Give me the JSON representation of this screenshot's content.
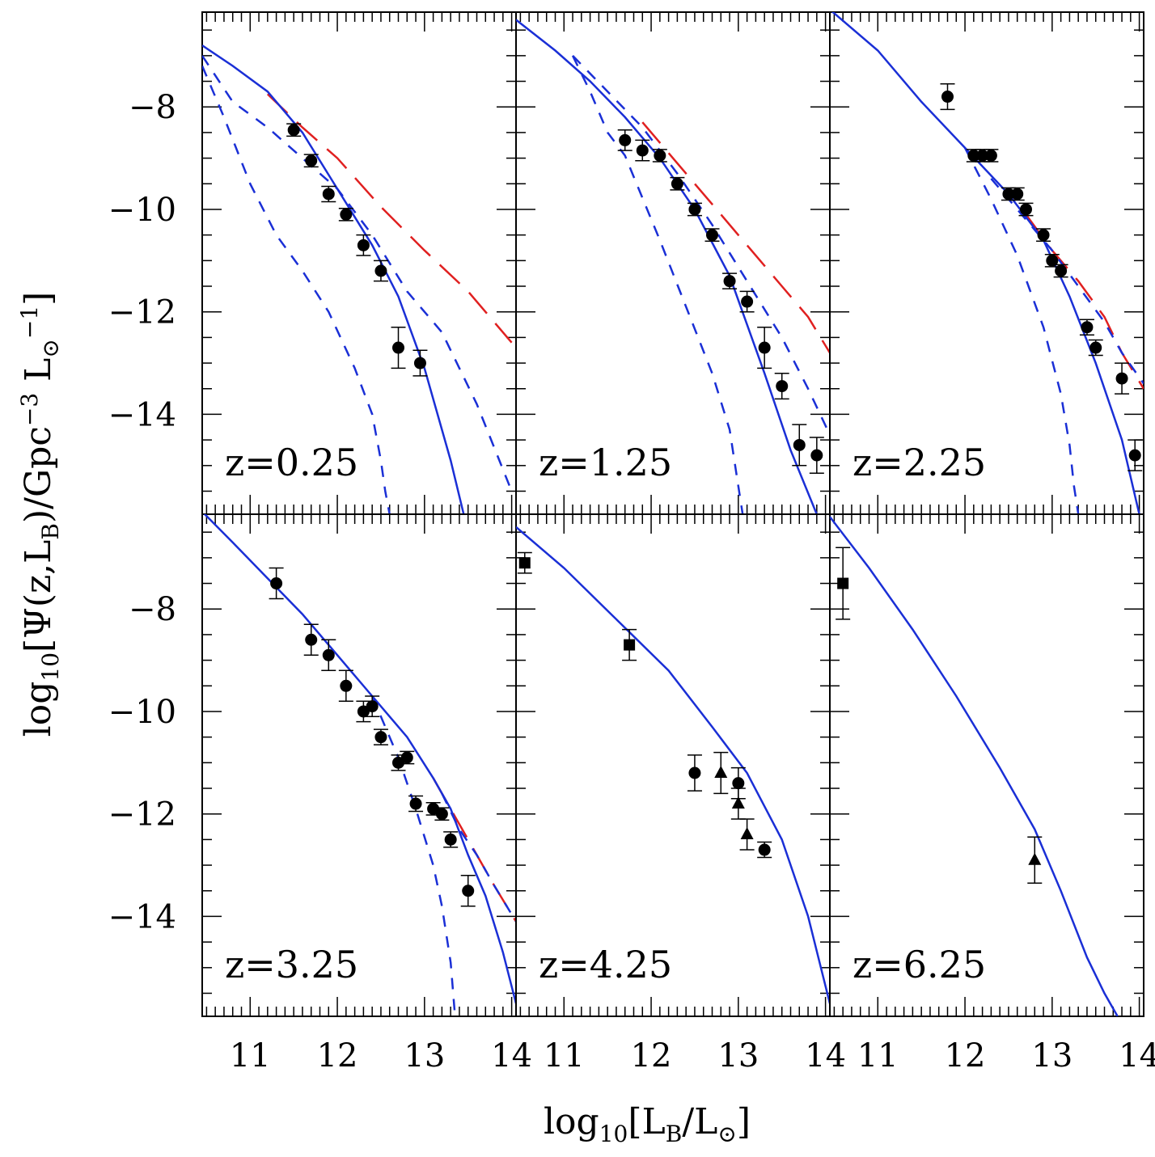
{
  "chart_data": {
    "type": "scatter",
    "xlabel": "log10[LB/L⊙]",
    "ylabel": "log10[Ψ(z,LB)/Gpc−3 L⊙−1]",
    "xlim": [
      10.45,
      14.05
    ],
    "ylim": [
      -15.95,
      -6.15
    ],
    "x_ticks": [
      11,
      12,
      13,
      14
    ],
    "y_ticks": [
      -8,
      -10,
      -12,
      -14
    ],
    "grid": false,
    "colors": {
      "model_total": "#1a2fd6",
      "model_components": "#1a2fd6",
      "model_alt": "#e02020",
      "data": "#000000"
    },
    "panels": [
      {
        "label": "z=0.25",
        "data_circles": [
          {
            "x": 11.5,
            "y": -8.45,
            "err": 0.12
          },
          {
            "x": 11.7,
            "y": -9.05,
            "err": 0.12
          },
          {
            "x": 11.9,
            "y": -9.7,
            "err": 0.15
          },
          {
            "x": 12.1,
            "y": -10.1,
            "err": 0.12
          },
          {
            "x": 12.3,
            "y": -10.7,
            "err": 0.2
          },
          {
            "x": 12.5,
            "y": -11.2,
            "err": 0.2
          },
          {
            "x": 12.7,
            "y": -12.7,
            "err": 0.4
          },
          {
            "x": 12.95,
            "y": -13.0,
            "err": 0.25
          }
        ],
        "model_total": {
          "x": [
            10.45,
            10.8,
            11.2,
            11.6,
            12.0,
            12.4,
            12.7,
            13.0,
            13.3,
            13.45
          ],
          "y": [
            -6.8,
            -7.2,
            -7.7,
            -8.5,
            -9.6,
            -10.7,
            -11.7,
            -13.1,
            -14.9,
            -15.95
          ]
        },
        "model_comp1": {
          "x": [
            10.45,
            10.7,
            11.0,
            11.3,
            11.6,
            11.9,
            12.2,
            12.4,
            12.5,
            12.55,
            12.6
          ],
          "y": [
            -7.2,
            -8.2,
            -9.5,
            -10.5,
            -11.2,
            -12.0,
            -13.1,
            -14.0,
            -14.9,
            -15.5,
            -15.95
          ]
        },
        "model_comp2": {
          "x": [
            10.45,
            10.8,
            11.2,
            11.6,
            12.0,
            12.4,
            12.8,
            13.2,
            13.6,
            14.0
          ],
          "y": [
            -7.0,
            -7.9,
            -8.4,
            -9.0,
            -9.6,
            -10.5,
            -11.6,
            -12.4,
            -13.8,
            -15.5
          ]
        },
        "model_alt": {
          "x": [
            11.2,
            11.6,
            12.0,
            12.5,
            13.0,
            13.5,
            14.0
          ],
          "y": [
            -7.75,
            -8.4,
            -9.0,
            -9.95,
            -10.8,
            -11.6,
            -12.6
          ]
        }
      },
      {
        "label": "z=1.25",
        "data_circles": [
          {
            "x": 11.7,
            "y": -8.65,
            "err": 0.2
          },
          {
            "x": 11.9,
            "y": -8.85,
            "err": 0.2
          },
          {
            "x": 12.1,
            "y": -8.95,
            "err": 0.12
          },
          {
            "x": 12.3,
            "y": -9.5,
            "err": 0.12
          },
          {
            "x": 12.5,
            "y": -10.0,
            "err": 0.12
          },
          {
            "x": 12.7,
            "y": -10.5,
            "err": 0.12
          },
          {
            "x": 12.9,
            "y": -11.4,
            "err": 0.15
          },
          {
            "x": 13.1,
            "y": -11.8,
            "err": 0.2
          },
          {
            "x": 13.3,
            "y": -12.7,
            "err": 0.4
          },
          {
            "x": 13.5,
            "y": -13.45,
            "err": 0.25
          },
          {
            "x": 13.7,
            "y": -14.6,
            "err": 0.4
          },
          {
            "x": 13.9,
            "y": -14.8,
            "err": 0.35
          }
        ],
        "model_total": {
          "x": [
            10.45,
            10.9,
            11.3,
            11.7,
            12.1,
            12.5,
            12.9,
            13.3,
            13.6,
            13.9
          ],
          "y": [
            -6.3,
            -6.9,
            -7.5,
            -8.2,
            -9.0,
            -10.0,
            -11.3,
            -13.2,
            -14.7,
            -15.95
          ]
        },
        "model_comp1": {
          "x": [
            11.1,
            11.3,
            11.5,
            11.7,
            12.1,
            12.4,
            12.7,
            12.9,
            13.0,
            13.05
          ],
          "y": [
            -7.0,
            -7.7,
            -8.5,
            -8.95,
            -10.6,
            -11.9,
            -13.2,
            -14.3,
            -15.4,
            -15.95
          ]
        },
        "model_comp2": {
          "x": [
            11.1,
            11.5,
            11.9,
            12.3,
            12.7,
            13.1,
            13.5,
            13.8,
            14.05
          ],
          "y": [
            -7.0,
            -7.7,
            -8.4,
            -9.3,
            -10.3,
            -11.4,
            -12.5,
            -13.5,
            -14.4
          ]
        },
        "model_alt": {
          "x": [
            11.9,
            12.3,
            12.7,
            13.1,
            13.5,
            13.8,
            14.05
          ],
          "y": [
            -8.3,
            -9.1,
            -9.9,
            -10.7,
            -11.5,
            -12.1,
            -12.8
          ]
        }
      },
      {
        "label": "z=2.25",
        "data_circles": [
          {
            "x": 11.8,
            "y": -7.8,
            "err": 0.25
          },
          {
            "x": 12.1,
            "y": -8.95,
            "err": 0.12
          },
          {
            "x": 12.2,
            "y": -8.95,
            "err": 0.12
          },
          {
            "x": 12.3,
            "y": -8.95,
            "err": 0.12
          },
          {
            "x": 12.5,
            "y": -9.7,
            "err": 0.12
          },
          {
            "x": 12.6,
            "y": -9.7,
            "err": 0.12
          },
          {
            "x": 12.7,
            "y": -10.0,
            "err": 0.12
          },
          {
            "x": 12.9,
            "y": -10.5,
            "err": 0.12
          },
          {
            "x": 13.0,
            "y": -11.0,
            "err": 0.12
          },
          {
            "x": 13.1,
            "y": -11.2,
            "err": 0.12
          },
          {
            "x": 13.4,
            "y": -12.3,
            "err": 0.15
          },
          {
            "x": 13.5,
            "y": -12.7,
            "err": 0.15
          },
          {
            "x": 13.8,
            "y": -13.3,
            "err": 0.3
          },
          {
            "x": 13.95,
            "y": -14.8,
            "err": 0.3
          }
        ],
        "model_total": {
          "x": [
            10.45,
            11.0,
            11.5,
            12.0,
            12.5,
            12.9,
            13.2,
            13.5,
            13.8,
            14.0
          ],
          "y": [
            -6.1,
            -6.9,
            -7.9,
            -8.8,
            -9.7,
            -10.6,
            -11.7,
            -13.0,
            -14.5,
            -15.95
          ]
        },
        "model_comp1": {
          "x": [
            12.0,
            12.3,
            12.6,
            12.9,
            13.1,
            13.2,
            13.25,
            13.3
          ],
          "y": [
            -8.8,
            -9.8,
            -10.9,
            -12.3,
            -13.6,
            -14.6,
            -15.4,
            -15.95
          ]
        },
        "model_comp2": {
          "x": [
            12.3,
            12.7,
            13.0,
            13.3,
            13.6,
            13.8,
            14.05
          ],
          "y": [
            -9.4,
            -10.2,
            -10.8,
            -11.5,
            -12.2,
            -12.8,
            -13.4
          ]
        },
        "model_alt": {
          "x": [
            12.7,
            13.0,
            13.3,
            13.6,
            13.8,
            14.05
          ],
          "y": [
            -10.1,
            -10.8,
            -11.4,
            -12.1,
            -12.8,
            -13.5
          ]
        }
      },
      {
        "label": "z=3.25",
        "data_circles": [
          {
            "x": 11.3,
            "y": -7.5,
            "err": 0.3
          },
          {
            "x": 11.7,
            "y": -8.6,
            "err": 0.3
          },
          {
            "x": 11.9,
            "y": -8.9,
            "err": 0.3
          },
          {
            "x": 12.1,
            "y": -9.5,
            "err": 0.3
          },
          {
            "x": 12.3,
            "y": -10.0,
            "err": 0.2
          },
          {
            "x": 12.4,
            "y": -9.9,
            "err": 0.2
          },
          {
            "x": 12.5,
            "y": -10.5,
            "err": 0.15
          },
          {
            "x": 12.7,
            "y": -11.0,
            "err": 0.15
          },
          {
            "x": 12.8,
            "y": -10.9,
            "err": 0.12
          },
          {
            "x": 12.9,
            "y": -11.8,
            "err": 0.15
          },
          {
            "x": 13.1,
            "y": -11.9,
            "err": 0.12
          },
          {
            "x": 13.2,
            "y": -12.0,
            "err": 0.12
          },
          {
            "x": 13.3,
            "y": -12.5,
            "err": 0.15
          },
          {
            "x": 13.5,
            "y": -13.5,
            "err": 0.3
          }
        ],
        "model_total": {
          "x": [
            10.45,
            10.8,
            11.2,
            11.6,
            12.0,
            12.4,
            12.8,
            13.1,
            13.3,
            13.5,
            13.7,
            13.9,
            14.05
          ],
          "y": [
            -6.1,
            -6.7,
            -7.4,
            -8.1,
            -8.9,
            -9.7,
            -10.5,
            -11.3,
            -11.9,
            -12.8,
            -13.6,
            -14.7,
            -15.7
          ]
        },
        "model_comp1": {
          "x": [
            12.4,
            12.7,
            12.9,
            13.1,
            13.2,
            13.3,
            13.35
          ],
          "y": [
            -9.7,
            -10.9,
            -11.9,
            -13.0,
            -13.8,
            -14.9,
            -15.95
          ]
        },
        "model_comp2": {
          "x": [
            13.2,
            13.4,
            13.6,
            13.8,
            14.05
          ],
          "y": [
            -11.6,
            -12.3,
            -12.8,
            -13.4,
            -14.1
          ]
        },
        "model_alt": {
          "x": [
            13.1,
            13.4,
            13.6,
            13.8,
            14.05
          ],
          "y": [
            -11.3,
            -12.2,
            -12.8,
            -13.4,
            -14.1
          ]
        }
      },
      {
        "label": "z=4.25",
        "data_circles": [
          {
            "x": 12.5,
            "y": -11.2,
            "err": 0.35
          },
          {
            "x": 13.0,
            "y": -11.4,
            "err": 0.3
          },
          {
            "x": 13.3,
            "y": -12.7,
            "err": 0.15
          }
        ],
        "data_squares": [
          {
            "x": 10.55,
            "y": -7.1,
            "err": 0.2
          },
          {
            "x": 11.75,
            "y": -8.7,
            "err": 0.3
          }
        ],
        "data_triangles": [
          {
            "x": 12.8,
            "y": -11.2,
            "err": 0.4
          },
          {
            "x": 13.0,
            "y": -11.8,
            "err": 0.3
          },
          {
            "x": 13.1,
            "y": -12.4,
            "err": 0.3
          }
        ],
        "model_total": {
          "x": [
            10.45,
            11.0,
            11.6,
            12.2,
            12.7,
            13.1,
            13.5,
            13.8,
            14.05
          ],
          "y": [
            -6.4,
            -7.2,
            -8.2,
            -9.2,
            -10.3,
            -11.2,
            -12.5,
            -14.0,
            -15.7
          ]
        }
      },
      {
        "label": "z=6.25",
        "data_squares": [
          {
            "x": 10.6,
            "y": -7.5,
            "err": 0.7
          }
        ],
        "data_triangles": [
          {
            "x": 12.8,
            "y": -12.9,
            "err": 0.45
          }
        ],
        "model_total": {
          "x": [
            10.45,
            10.9,
            11.4,
            11.9,
            12.4,
            12.8,
            13.1,
            13.4,
            13.6,
            13.75
          ],
          "y": [
            -6.2,
            -7.2,
            -8.4,
            -9.7,
            -11.1,
            -12.3,
            -13.5,
            -14.8,
            -15.5,
            -15.95
          ]
        }
      }
    ]
  }
}
